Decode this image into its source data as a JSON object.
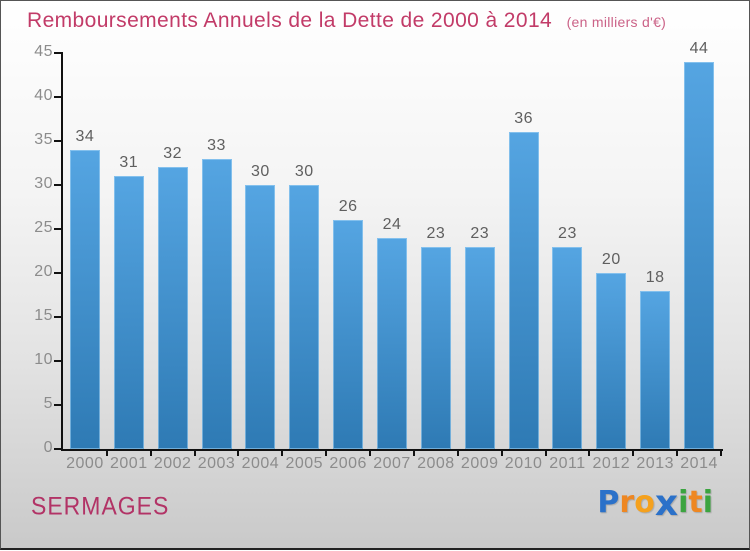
{
  "header": {
    "title": "Remboursements Annuels de la Dette de 2000 à 2014",
    "subtitle": "(en milliers d'€)"
  },
  "footer": {
    "commune": "SERMAGES",
    "logo": {
      "name": "Proxiti",
      "letters": [
        {
          "ch": "P",
          "color": "#2b71c9",
          "big": false
        },
        {
          "ch": "r",
          "color": "#ee8722",
          "big": false
        },
        {
          "ch": "o",
          "color": "#f5a11d",
          "big": false
        },
        {
          "ch": "x",
          "color": "#2b71c9",
          "big": true
        },
        {
          "ch": "i",
          "color": "#3ba43f",
          "big": false
        },
        {
          "ch": "t",
          "color": "#ee8722",
          "big": false
        },
        {
          "ch": "i",
          "color": "#3ba43f",
          "big": false
        }
      ]
    }
  },
  "colors": {
    "title_color": "#c23b68",
    "subtitle_color": "#cb6287",
    "commune_color": "#b23366",
    "axis_color": "#111111",
    "tick_label_color": "#8c8c8c",
    "value_label_color": "#5f5f5f",
    "bar_top": "#55a5e2",
    "bar_bottom": "#2e7ab4"
  },
  "chart_data": {
    "type": "bar",
    "title": "Remboursements Annuels de la Dette de 2000 à 2014",
    "subtitle": "(en milliers d'€)",
    "categories": [
      "2000",
      "2001",
      "2002",
      "2003",
      "2004",
      "2005",
      "2006",
      "2007",
      "2008",
      "2009",
      "2010",
      "2011",
      "2012",
      "2013",
      "2014"
    ],
    "values": [
      34,
      31,
      32,
      33,
      30,
      30,
      26,
      24,
      23,
      23,
      36,
      23,
      20,
      18,
      44
    ],
    "xlabel": "",
    "ylabel": "",
    "ylim": [
      0,
      45
    ],
    "ytick_step": 5,
    "grid": false,
    "legend": null,
    "value_labels_shown": true
  }
}
